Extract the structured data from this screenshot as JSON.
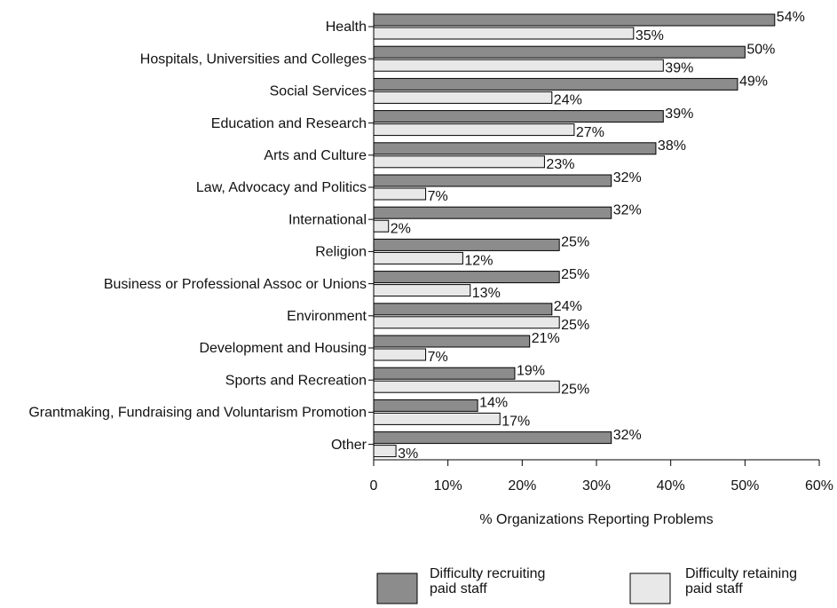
{
  "chart_data": {
    "type": "bar",
    "orientation": "horizontal",
    "x_label": "% Organizations Reporting Problems",
    "categories": [
      "Health",
      "Hospitals, Universities and Colleges",
      "Social Services",
      "Education and Research",
      "Arts and Culture",
      "Law, Advocacy and Politics",
      "International",
      "Religion",
      "Business or Professional Assoc or Unions",
      "Environment",
      "Development and Housing",
      "Sports and Recreation",
      "Grantmaking, Fundraising and Voluntarism Promotion",
      "Other"
    ],
    "series": [
      {
        "name": "Difficulty recruiting paid staff",
        "color": "#8c8c8c",
        "values": [
          54,
          50,
          49,
          39,
          38,
          32,
          32,
          25,
          25,
          24,
          21,
          19,
          14,
          32
        ],
        "value_labels": [
          "54%",
          "50%",
          "49%",
          "39%",
          "38%",
          "32%",
          "32%",
          "25%",
          "25%",
          "24%",
          "21%",
          "19%",
          "14%",
          "32%"
        ]
      },
      {
        "name": "Difficulty retaining paid staff",
        "color": "#e8e8e8",
        "values": [
          35,
          39,
          24,
          27,
          23,
          7,
          2,
          12,
          13,
          25,
          7,
          25,
          17,
          3
        ],
        "value_labels": [
          "35%",
          "39%",
          "24%",
          "27%",
          "23%",
          "7%",
          "2%",
          "12%",
          "13%",
          "25%",
          "7%",
          "25%",
          "17%",
          "3%"
        ]
      }
    ],
    "xlim": [
      0,
      60
    ],
    "xticks": [
      0,
      {
        "value": 10,
        "label": "10%"
      },
      {
        "value": 20,
        "label": "20%"
      },
      {
        "value": 30,
        "label": "30%"
      },
      {
        "value": 40,
        "label": "40%"
      },
      {
        "value": 50,
        "label": "50%"
      },
      {
        "value": 60,
        "label": "60%"
      }
    ],
    "legend": "bottom"
  }
}
